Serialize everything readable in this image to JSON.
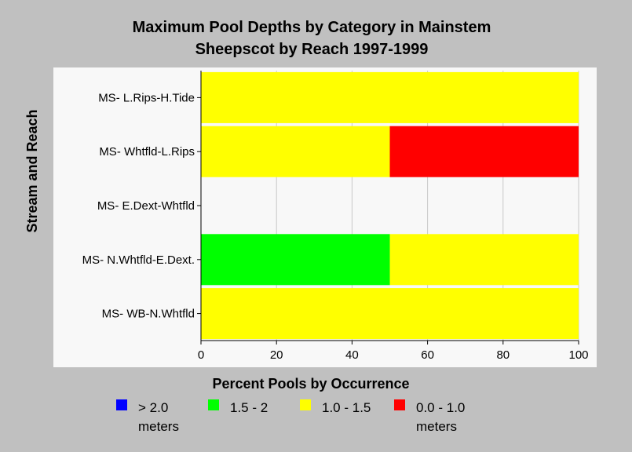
{
  "chart_data": {
    "type": "bar",
    "orientation": "horizontal",
    "stacked": true,
    "title": "Maximum Pool Depths by Category in Mainstem",
    "subtitle": "Sheepscot by Reach 1997-1999",
    "xlabel": "Percent Pools by Occurrence",
    "ylabel": "Stream and Reach",
    "xlim": [
      0,
      100
    ],
    "xticks": [
      "0",
      "20",
      "40",
      "60",
      "80",
      "100"
    ],
    "categories": [
      "MS- L.Rips-H.Tide",
      "MS- Whtfld-L.Rips",
      "MS- E.Dext-Whtfld",
      "MS- N.Whtfld-E.Dext.",
      "MS- WB-N.Whtfld"
    ],
    "series": [
      {
        "name": "> 2.0 meters",
        "color": "#0000ff",
        "values": [
          0,
          0,
          0,
          0,
          0
        ]
      },
      {
        "name": "1.5 - 2",
        "color": "#00ff00",
        "values": [
          0,
          0,
          0,
          50,
          0
        ]
      },
      {
        "name": "1.0 - 1.5",
        "color": "#ffff00",
        "values": [
          100,
          50,
          0,
          50,
          100
        ]
      },
      {
        "name": "0.0 - 1.0 meters",
        "color": "#ff0000",
        "values": [
          0,
          50,
          0,
          0,
          0
        ]
      }
    ],
    "legend": {
      "placement": "bottom",
      "items": [
        {
          "line1": "> 2.0",
          "line2": "meters",
          "color": "#0000ff"
        },
        {
          "line1": "1.5 - 2",
          "line2": "",
          "color": "#00ff00"
        },
        {
          "line1": "1.0 - 1.5",
          "line2": "",
          "color": "#ffff00"
        },
        {
          "line1": "0.0 - 1.0",
          "line2": "meters",
          "color": "#ff0000"
        }
      ]
    },
    "grid": true,
    "colors": {
      "background": "#c0c0c0",
      "plot_background": "#f8f8f8",
      "gridline": "#c8c8c8"
    }
  }
}
